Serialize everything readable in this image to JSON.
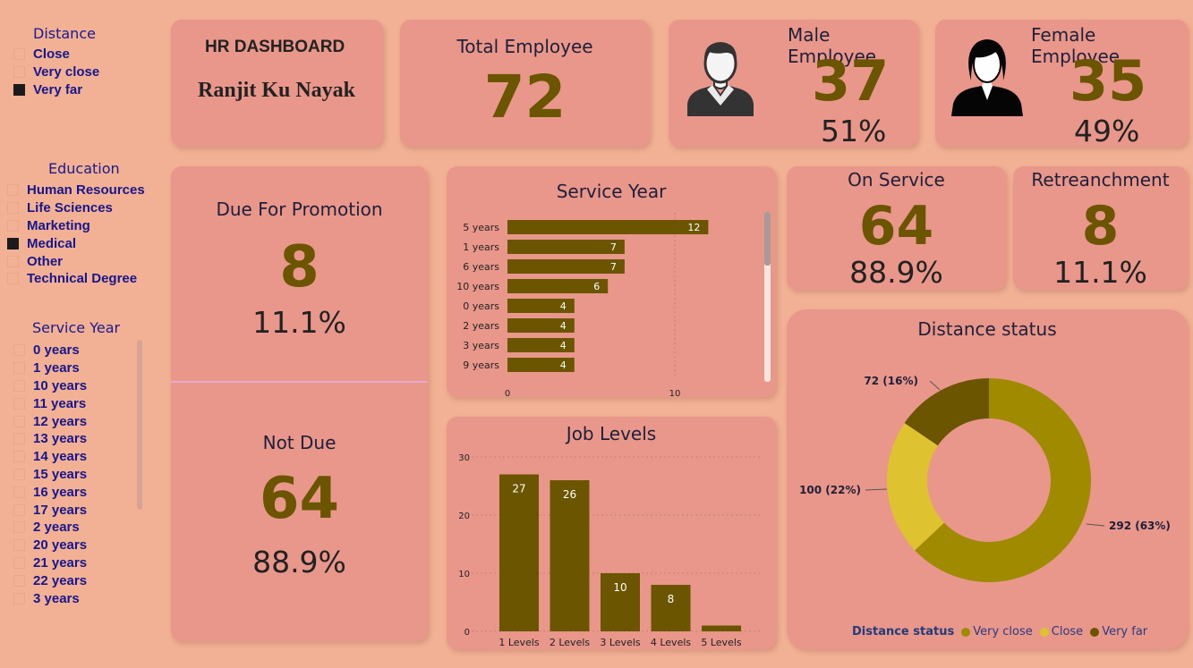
{
  "slicers": {
    "distance": {
      "title": "Distance",
      "items": [
        {
          "label": "Close",
          "checked": false
        },
        {
          "label": "Very close",
          "checked": false
        },
        {
          "label": "Very far",
          "checked": true
        }
      ]
    },
    "education": {
      "title": "Education",
      "items": [
        {
          "label": "Human Resources",
          "checked": false
        },
        {
          "label": "Life Sciences",
          "checked": false
        },
        {
          "label": "Marketing",
          "checked": false
        },
        {
          "label": "Medical",
          "checked": true
        },
        {
          "label": "Other",
          "checked": false
        },
        {
          "label": "Technical Degree",
          "checked": false
        }
      ]
    },
    "service_year": {
      "title": "Service Year",
      "items": [
        {
          "label": "0 years",
          "checked": false
        },
        {
          "label": "1 years",
          "checked": false
        },
        {
          "label": "10 years",
          "checked": false
        },
        {
          "label": "11 years",
          "checked": false
        },
        {
          "label": "12 years",
          "checked": false
        },
        {
          "label": "13 years",
          "checked": false
        },
        {
          "label": "14 years",
          "checked": false
        },
        {
          "label": "15 years",
          "checked": false
        },
        {
          "label": "16 years",
          "checked": false
        },
        {
          "label": "17 years",
          "checked": false
        },
        {
          "label": "2 years",
          "checked": false
        },
        {
          "label": "20 years",
          "checked": false
        },
        {
          "label": "21 years",
          "checked": false
        },
        {
          "label": "22 years",
          "checked": false
        },
        {
          "label": "3 years",
          "checked": false
        }
      ]
    }
  },
  "header": {
    "title": "HR DASHBOARD",
    "author": "Ranjit Ku Nayak"
  },
  "kpis": {
    "total": {
      "title": "Total Employee",
      "value": "72"
    },
    "male": {
      "title": "Male Employee",
      "value": "37",
      "pct": "51%",
      "icon": "male-avatar-icon"
    },
    "female": {
      "title": "Female Employee",
      "value": "35",
      "pct": "49%",
      "icon": "female-avatar-icon"
    },
    "promotion": {
      "title": "Due For Promotion",
      "value": "8",
      "pct": "11.1%"
    },
    "not_due": {
      "title": "Not Due",
      "value": "64",
      "pct": "88.9%"
    },
    "on_service": {
      "title": "On Service",
      "value": "64",
      "pct": "88.9%"
    },
    "retrenchment": {
      "title": "Retreanchment",
      "value": "8",
      "pct": "11.1%"
    }
  },
  "colors": {
    "background": "#f2b095",
    "card": "#e8978a",
    "olive": "#6b5500",
    "olive_mid": "#a08a00",
    "yellow": "#dfc22f",
    "slicer_text": "#17178a"
  },
  "chart_data": [
    {
      "type": "bar",
      "orientation": "horizontal",
      "title": "Service Year",
      "categories": [
        "5 years",
        "1 years",
        "6 years",
        "10 years",
        "0 years",
        "2 years",
        "3 years",
        "9 years"
      ],
      "values": [
        12,
        7,
        7,
        6,
        4,
        4,
        4,
        4
      ],
      "xticks": [
        "0",
        "10"
      ],
      "xlim": [
        0,
        15
      ],
      "data_labels": true,
      "color": "#6b5500"
    },
    {
      "type": "bar",
      "title": "Job Levels",
      "categories": [
        "1 Levels",
        "2 Levels",
        "3 Levels",
        "4 Levels",
        "5 Levels"
      ],
      "values": [
        27,
        26,
        10,
        8,
        1
      ],
      "value_labels": [
        "27",
        "26",
        "10",
        "8",
        ""
      ],
      "yticks": [
        "0",
        "10",
        "20",
        "30"
      ],
      "ylim": [
        0,
        30
      ],
      "grid": true,
      "data_labels": true,
      "color": "#6b5500"
    },
    {
      "type": "pie",
      "donut": true,
      "title": "Distance status",
      "legend_title": "Distance status",
      "legend_position": "bottom",
      "series": [
        {
          "name": "Very close",
          "value": 292,
          "label": "292 (63%)",
          "color": "#a08a00"
        },
        {
          "name": "Close",
          "value": 100,
          "label": "100 (22%)",
          "color": "#dfc22f"
        },
        {
          "name": "Very far",
          "value": 72,
          "label": "72 (16%)",
          "color": "#6b5500"
        }
      ]
    }
  ]
}
